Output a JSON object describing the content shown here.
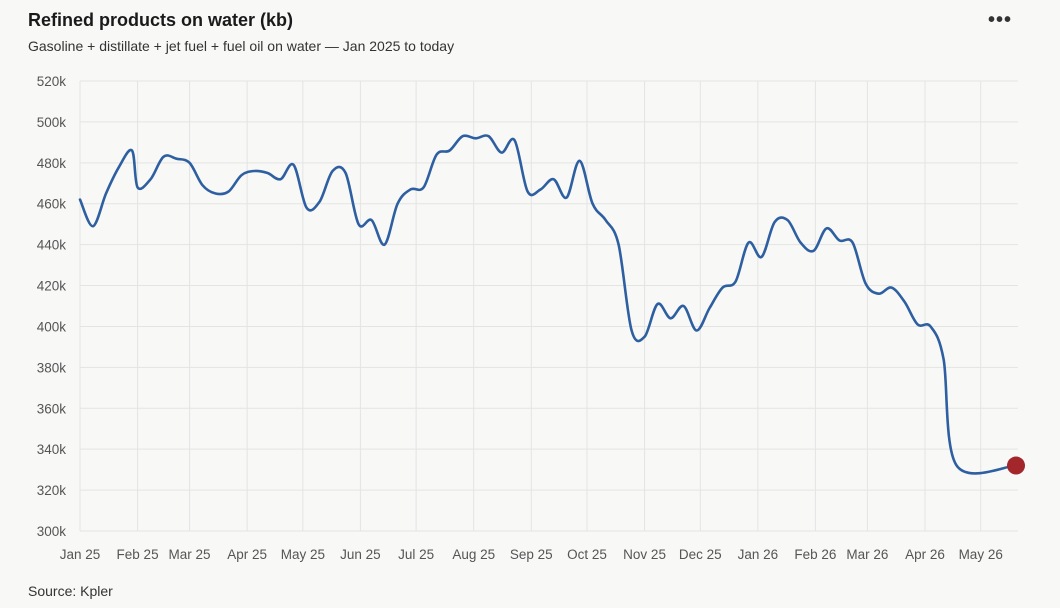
{
  "header": {
    "title": "Refined products on water (kb)",
    "subtitle": "Gasoline + distillate + jet fuel + fuel oil on water — Jan 2025 to today",
    "menu_label": "•••"
  },
  "footer": {
    "source": "Source: Kpler"
  },
  "colors": {
    "line": "#2e5fa0",
    "marker": "#a3262a",
    "grid": "#e4e4e2"
  },
  "icons": {
    "menu": "more-horizontal-icon"
  },
  "chart_data": {
    "type": "line",
    "title": "Refined products on water (kb)",
    "subtitle": "Gasoline + distillate + jet fuel + fuel oil on water — Jan 2025 to today",
    "xlabel": "",
    "ylabel": "",
    "ylim": [
      300000,
      520000
    ],
    "yticks": [
      300000,
      320000,
      340000,
      360000,
      380000,
      400000,
      420000,
      440000,
      460000,
      480000,
      500000,
      520000
    ],
    "ytick_labels": [
      "300k",
      "320k",
      "340k",
      "360k",
      "380k",
      "400k",
      "420k",
      "440k",
      "460k",
      "480k",
      "500k",
      "520k"
    ],
    "xlim": [
      "2025-01-01",
      "2026-05-20"
    ],
    "xticks": [
      "2025-01-01",
      "2025-02-01",
      "2025-03-01",
      "2025-04-01",
      "2025-05-01",
      "2025-06-01",
      "2025-07-01",
      "2025-08-01",
      "2025-09-01",
      "2025-10-01",
      "2025-11-01",
      "2025-12-01",
      "2026-01-01",
      "2026-02-01",
      "2026-03-01",
      "2026-04-01",
      "2026-05-01"
    ],
    "xtick_labels": [
      "Jan 25",
      "Feb 25",
      "Mar 25",
      "Apr 25",
      "May 25",
      "Jun 25",
      "Jul 25",
      "Aug 25",
      "Sep 25",
      "Oct 25",
      "Nov 25",
      "Dec 25",
      "Jan 26",
      "Feb 26",
      "Mar 26",
      "Apr 26",
      "May 26"
    ],
    "grid": true,
    "legend": "none",
    "series": [
      {
        "name": "",
        "x": [
          "2025-01-01",
          "2025-01-08",
          "2025-01-15",
          "2025-01-22",
          "2025-01-29",
          "2025-02-01",
          "2025-02-08",
          "2025-02-15",
          "2025-02-22",
          "2025-03-01",
          "2025-03-08",
          "2025-03-15",
          "2025-03-22",
          "2025-03-29",
          "2025-04-05",
          "2025-04-12",
          "2025-04-19",
          "2025-04-26",
          "2025-05-03",
          "2025-05-10",
          "2025-05-17",
          "2025-05-24",
          "2025-05-31",
          "2025-06-07",
          "2025-06-14",
          "2025-06-21",
          "2025-06-28",
          "2025-07-05",
          "2025-07-12",
          "2025-07-19",
          "2025-07-26",
          "2025-08-02",
          "2025-08-09",
          "2025-08-16",
          "2025-08-23",
          "2025-08-30",
          "2025-09-06",
          "2025-09-13",
          "2025-09-20",
          "2025-09-27",
          "2025-10-04",
          "2025-10-11",
          "2025-10-18",
          "2025-10-25",
          "2025-11-01",
          "2025-11-08",
          "2025-11-15",
          "2025-11-22",
          "2025-11-29",
          "2025-12-06",
          "2025-12-13",
          "2025-12-20",
          "2025-12-27",
          "2026-01-03",
          "2026-01-10",
          "2026-01-17",
          "2026-01-24",
          "2026-01-31",
          "2026-02-07",
          "2026-02-14",
          "2026-02-21",
          "2026-02-28",
          "2026-03-07",
          "2026-03-14",
          "2026-03-21",
          "2026-03-28",
          "2026-04-04",
          "2026-04-11",
          "2026-04-18",
          "2026-04-25",
          "2026-05-02",
          "2026-05-09",
          "2026-05-16",
          "2026-05-20"
        ],
        "values": [
          462000,
          449000,
          465000,
          478000,
          486000,
          468000,
          472000,
          483000,
          482000,
          480000,
          469000,
          465000,
          466000,
          474000,
          476000,
          475000,
          472000,
          479000,
          458000,
          461000,
          476000,
          475000,
          450000,
          452000,
          440000,
          460000,
          467000,
          468000,
          484000,
          486000,
          493000,
          492000,
          493000,
          485000,
          491000,
          466000,
          467000,
          472000,
          463000,
          481000,
          460000,
          452000,
          440000,
          398000,
          395000,
          411000,
          404000,
          410000,
          398000,
          409000,
          419000,
          422000,
          441000,
          434000,
          451000,
          452000,
          441000,
          437000,
          448000,
          442000,
          441000,
          421000,
          416000,
          419000,
          412000,
          401000,
          400000,
          384000,
          332000,
          332000,
          332000,
          332000,
          332000,
          332000
        ],
        "note_marker": "last"
      }
    ]
  }
}
